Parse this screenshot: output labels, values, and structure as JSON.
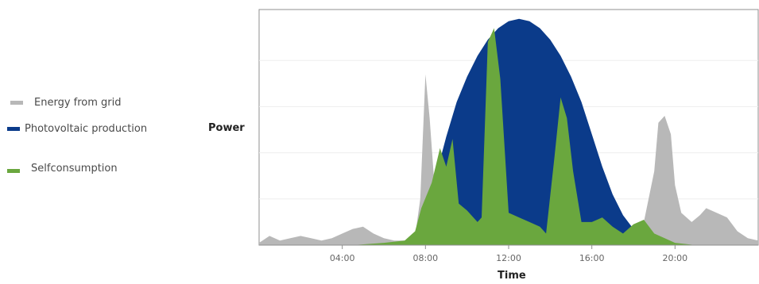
{
  "chart_data": {
    "type": "area",
    "title": "",
    "xlabel": "Time",
    "ylabel": "Power",
    "xlim": [
      0,
      24
    ],
    "ylim": [
      0,
      100
    ],
    "grid": true,
    "legend_position": "left",
    "x_ticks": [
      {
        "value": 4,
        "label": "04:00"
      },
      {
        "value": 8,
        "label": "08:00"
      },
      {
        "value": 12,
        "label": "12:00"
      },
      {
        "value": 16,
        "label": "16:00"
      },
      {
        "value": 20,
        "label": "20:00"
      }
    ],
    "series": [
      {
        "name": "Energy from grid",
        "color": "#b8b8b8",
        "points": [
          [
            0,
            1
          ],
          [
            0.5,
            4
          ],
          [
            1,
            2
          ],
          [
            1.5,
            3
          ],
          [
            2,
            4
          ],
          [
            2.5,
            3
          ],
          [
            3,
            2
          ],
          [
            3.5,
            3
          ],
          [
            4,
            5
          ],
          [
            4.5,
            7
          ],
          [
            5,
            8
          ],
          [
            5.5,
            5
          ],
          [
            6,
            3
          ],
          [
            6.5,
            2
          ],
          [
            7,
            2
          ],
          [
            7.5,
            4
          ],
          [
            7.75,
            20
          ],
          [
            8.0,
            74
          ],
          [
            8.2,
            55
          ],
          [
            8.4,
            30
          ],
          [
            8.6,
            18
          ],
          [
            9,
            14
          ],
          [
            10,
            8
          ],
          [
            11,
            6
          ],
          [
            12,
            4
          ],
          [
            13,
            3
          ],
          [
            14,
            3
          ],
          [
            15,
            3
          ],
          [
            16,
            3
          ],
          [
            17,
            3
          ],
          [
            18,
            4
          ],
          [
            18.5,
            10
          ],
          [
            19,
            32
          ],
          [
            19.2,
            53
          ],
          [
            19.5,
            56
          ],
          [
            19.8,
            48
          ],
          [
            20,
            26
          ],
          [
            20.3,
            14
          ],
          [
            20.8,
            10
          ],
          [
            21.2,
            13
          ],
          [
            21.5,
            16
          ],
          [
            22,
            14
          ],
          [
            22.5,
            12
          ],
          [
            23,
            6
          ],
          [
            23.5,
            3
          ],
          [
            24,
            2
          ]
        ]
      },
      {
        "name": "Photovoltaic production",
        "color": "#0b3b8a",
        "points": [
          [
            7,
            0
          ],
          [
            7.5,
            4
          ],
          [
            8,
            12
          ],
          [
            8.5,
            30
          ],
          [
            9,
            47
          ],
          [
            9.5,
            62
          ],
          [
            10,
            73
          ],
          [
            10.5,
            82
          ],
          [
            11,
            89
          ],
          [
            11.5,
            94
          ],
          [
            12,
            97
          ],
          [
            12.5,
            98
          ],
          [
            13,
            97
          ],
          [
            13.5,
            94
          ],
          [
            14,
            89
          ],
          [
            14.5,
            82
          ],
          [
            15,
            73
          ],
          [
            15.5,
            62
          ],
          [
            16,
            48
          ],
          [
            16.5,
            34
          ],
          [
            17,
            22
          ],
          [
            17.5,
            13
          ],
          [
            18,
            7
          ],
          [
            18.5,
            2
          ],
          [
            19,
            0
          ]
        ]
      },
      {
        "name": "Selfconsumption",
        "color": "#6aa73e",
        "points": [
          [
            4.5,
            0
          ],
          [
            6,
            1
          ],
          [
            7,
            2
          ],
          [
            7.5,
            6
          ],
          [
            7.8,
            16
          ],
          [
            8.3,
            27
          ],
          [
            8.7,
            42
          ],
          [
            9.0,
            34
          ],
          [
            9.3,
            46
          ],
          [
            9.6,
            18
          ],
          [
            10,
            15
          ],
          [
            10.5,
            10
          ],
          [
            10.7,
            12
          ],
          [
            11.0,
            88
          ],
          [
            11.3,
            94
          ],
          [
            11.6,
            72
          ],
          [
            12,
            14
          ],
          [
            12.5,
            12
          ],
          [
            13,
            10
          ],
          [
            13.5,
            8
          ],
          [
            13.8,
            5
          ],
          [
            14.2,
            38
          ],
          [
            14.5,
            64
          ],
          [
            14.8,
            55
          ],
          [
            15.1,
            32
          ],
          [
            15.5,
            10
          ],
          [
            16,
            10
          ],
          [
            16.5,
            12
          ],
          [
            17,
            8
          ],
          [
            17.5,
            5
          ],
          [
            18,
            9
          ],
          [
            18.5,
            11
          ],
          [
            19,
            5
          ],
          [
            19.5,
            3
          ],
          [
            20,
            1
          ],
          [
            21,
            0
          ]
        ]
      }
    ]
  }
}
